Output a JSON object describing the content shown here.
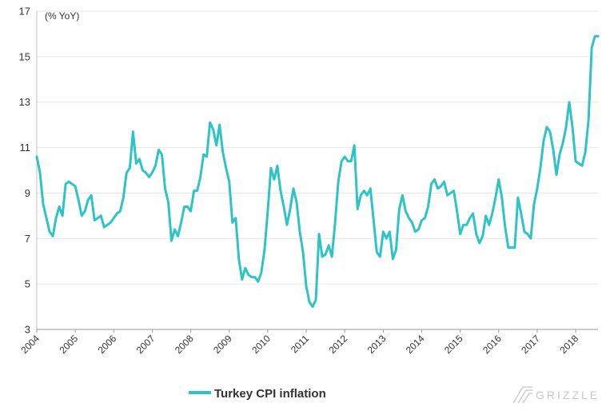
{
  "chart_data": {
    "type": "line",
    "unit_label": "(% YoY)",
    "ylim": [
      3,
      17
    ],
    "y_ticks": [
      "3",
      "5",
      "7",
      "9",
      "11",
      "13",
      "15",
      "17"
    ],
    "x_ticks": [
      "2004",
      "2005",
      "2006",
      "2007",
      "2008",
      "2009",
      "2010",
      "2011",
      "2012",
      "2013",
      "2014",
      "2015",
      "2016",
      "2017",
      "2018"
    ],
    "xlim": [
      2004.0,
      2018.58
    ],
    "grid": "horizontal",
    "legend_position": "bottom-left",
    "series": [
      {
        "name": "Turkey CPI inflation",
        "color": "#2ec4c6",
        "x": [
          2004.0,
          2004.083,
          2004.167,
          2004.25,
          2004.333,
          2004.417,
          2004.5,
          2004.583,
          2004.667,
          2004.75,
          2004.833,
          2004.917,
          2005.0,
          2005.083,
          2005.167,
          2005.25,
          2005.333,
          2005.417,
          2005.5,
          2005.583,
          2005.667,
          2005.75,
          2005.833,
          2005.917,
          2006.0,
          2006.083,
          2006.167,
          2006.25,
          2006.333,
          2006.417,
          2006.5,
          2006.583,
          2006.667,
          2006.75,
          2006.833,
          2006.917,
          2007.0,
          2007.083,
          2007.167,
          2007.25,
          2007.333,
          2007.417,
          2007.5,
          2007.583,
          2007.667,
          2007.75,
          2007.833,
          2007.917,
          2008.0,
          2008.083,
          2008.167,
          2008.25,
          2008.333,
          2008.417,
          2008.5,
          2008.583,
          2008.667,
          2008.75,
          2008.833,
          2008.917,
          2009.0,
          2009.083,
          2009.167,
          2009.25,
          2009.333,
          2009.417,
          2009.5,
          2009.583,
          2009.667,
          2009.75,
          2009.833,
          2009.917,
          2010.0,
          2010.083,
          2010.167,
          2010.25,
          2010.333,
          2010.417,
          2010.5,
          2010.583,
          2010.667,
          2010.75,
          2010.833,
          2010.917,
          2011.0,
          2011.083,
          2011.167,
          2011.25,
          2011.333,
          2011.417,
          2011.5,
          2011.583,
          2011.667,
          2011.75,
          2011.833,
          2011.917,
          2012.0,
          2012.083,
          2012.167,
          2012.25,
          2012.333,
          2012.417,
          2012.5,
          2012.583,
          2012.667,
          2012.75,
          2012.833,
          2012.917,
          2013.0,
          2013.083,
          2013.167,
          2013.25,
          2013.333,
          2013.417,
          2013.5,
          2013.583,
          2013.667,
          2013.75,
          2013.833,
          2013.917,
          2014.0,
          2014.083,
          2014.167,
          2014.25,
          2014.333,
          2014.417,
          2014.5,
          2014.583,
          2014.667,
          2014.75,
          2014.833,
          2014.917,
          2015.0,
          2015.083,
          2015.167,
          2015.25,
          2015.333,
          2015.417,
          2015.5,
          2015.583,
          2015.667,
          2015.75,
          2015.833,
          2015.917,
          2016.0,
          2016.083,
          2016.167,
          2016.25,
          2016.333,
          2016.417,
          2016.5,
          2016.583,
          2016.667,
          2016.75,
          2016.833,
          2016.917,
          2017.0,
          2017.083,
          2017.167,
          2017.25,
          2017.333,
          2017.417,
          2017.5,
          2017.583,
          2017.667,
          2017.75,
          2017.833,
          2017.917,
          2018.0,
          2018.083,
          2018.167,
          2018.25,
          2018.333,
          2018.417,
          2018.5,
          2018.583
        ],
        "values": [
          10.6,
          9.9,
          8.5,
          7.9,
          7.3,
          7.1,
          7.9,
          8.4,
          8.0,
          9.4,
          9.5,
          9.4,
          9.3,
          8.7,
          8.0,
          8.2,
          8.7,
          8.9,
          7.8,
          7.9,
          8.0,
          7.5,
          7.6,
          7.7,
          7.9,
          8.1,
          8.2,
          8.8,
          9.9,
          10.1,
          11.7,
          10.3,
          10.5,
          10.0,
          9.9,
          9.7,
          9.9,
          10.2,
          10.9,
          10.7,
          9.2,
          8.6,
          6.9,
          7.4,
          7.1,
          7.7,
          8.4,
          8.4,
          8.2,
          9.1,
          9.1,
          9.7,
          10.7,
          10.6,
          12.1,
          11.8,
          11.1,
          12.0,
          10.8,
          10.1,
          9.5,
          7.7,
          7.9,
          6.1,
          5.2,
          5.7,
          5.4,
          5.3,
          5.3,
          5.1,
          5.5,
          6.5,
          8.2,
          10.1,
          9.6,
          10.2,
          9.1,
          8.4,
          7.6,
          8.3,
          9.2,
          8.6,
          7.3,
          6.4,
          4.9,
          4.2,
          4.0,
          4.3,
          7.2,
          6.2,
          6.3,
          6.7,
          6.2,
          7.7,
          9.5,
          10.4,
          10.6,
          10.4,
          10.4,
          11.1,
          8.3,
          8.9,
          9.1,
          8.9,
          9.2,
          7.8,
          6.4,
          6.2,
          7.3,
          7.0,
          7.3,
          6.1,
          6.5,
          8.3,
          8.9,
          8.2,
          7.9,
          7.7,
          7.3,
          7.4,
          7.8,
          7.9,
          8.4,
          9.4,
          9.6,
          9.2,
          9.3,
          9.5,
          8.9,
          9.0,
          9.1,
          8.2,
          7.2,
          7.6,
          7.6,
          7.9,
          8.1,
          7.2,
          6.8,
          7.1,
          8.0,
          7.6,
          8.1,
          8.8,
          9.6,
          8.8,
          7.5,
          6.6,
          6.6,
          6.6,
          8.8,
          8.1,
          7.3,
          7.2,
          7.0,
          8.5,
          9.2,
          10.1,
          11.3,
          11.9,
          11.7,
          10.9,
          9.8,
          10.7,
          11.2,
          11.9,
          13.0,
          11.9,
          10.4,
          10.3,
          10.2,
          10.8,
          12.2,
          15.4,
          15.9,
          15.9
        ]
      }
    ]
  },
  "watermark": {
    "text": "GRIZZLE",
    "icon": "grizzle-logo-icon"
  }
}
